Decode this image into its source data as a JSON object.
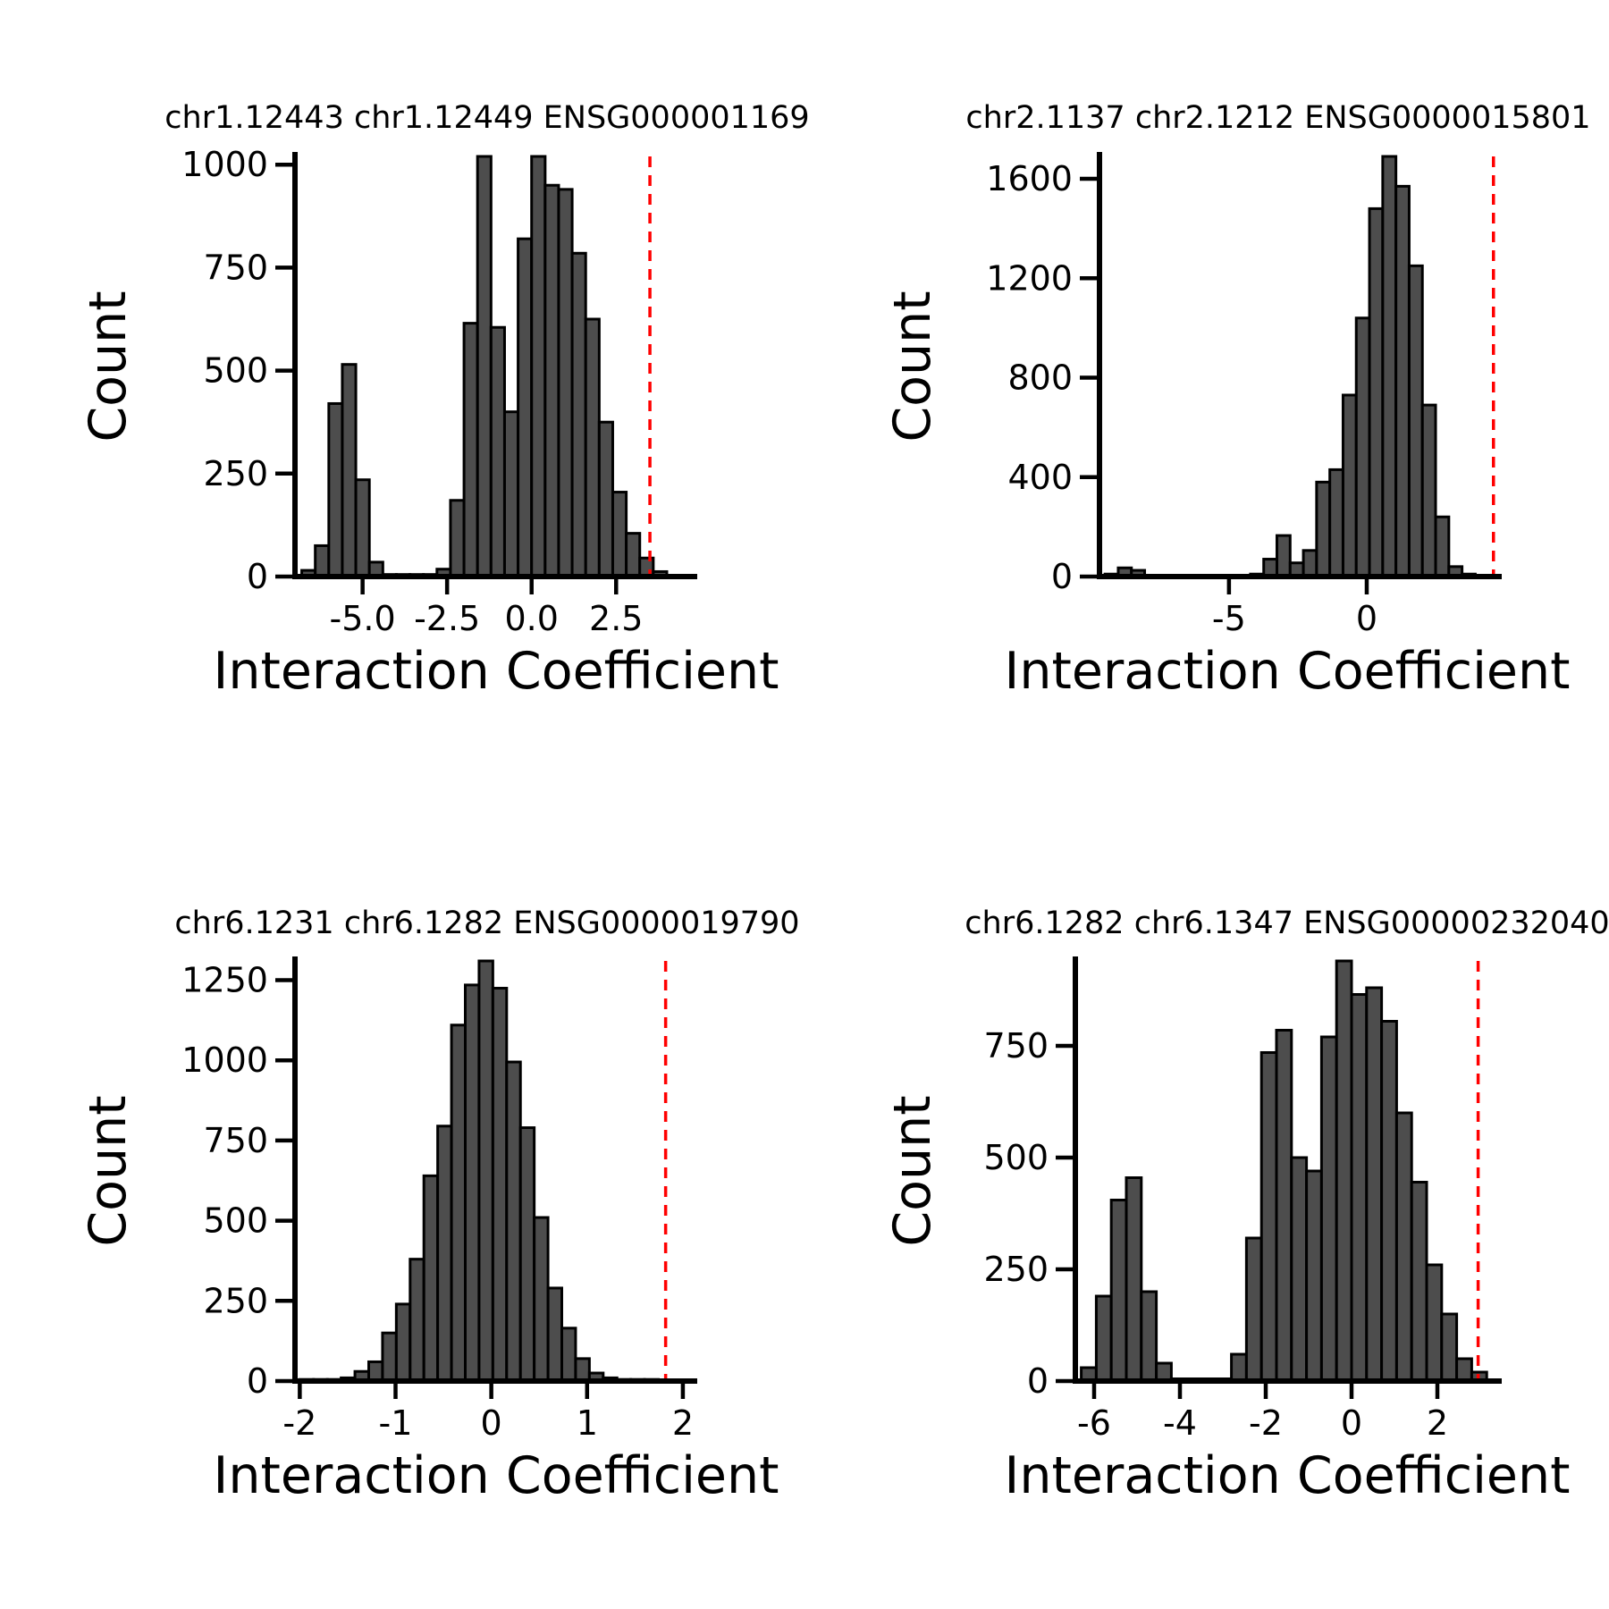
{
  "colors": {
    "bar_fill": "#4d4d4d",
    "bar_edge": "#000000",
    "threshold_line": "#ff0000"
  },
  "chart_data": [
    {
      "type": "bar",
      "title": "chr1.12443 chr1.12449 ENSG000001169",
      "xlabel": "Interaction Coefficient",
      "ylabel": "Count",
      "xlim": [
        -7.0,
        4.9
      ],
      "ylim": [
        0,
        1020
      ],
      "xticks": [
        -5.0,
        -2.5,
        0.0,
        2.5
      ],
      "xtick_labels": [
        "-5.0",
        "-2.5",
        "0.0",
        "2.5"
      ],
      "yticks": [
        0,
        250,
        500,
        750,
        1000
      ],
      "ytick_labels": [
        "0",
        "250",
        "500",
        "750",
        "1000"
      ],
      "bin_start": -6.8,
      "bin_width": 0.4,
      "counts": [
        15,
        75,
        420,
        515,
        235,
        35,
        5,
        5,
        5,
        5,
        18,
        185,
        615,
        1020,
        605,
        400,
        820,
        1020,
        950,
        940,
        785,
        625,
        375,
        205,
        105,
        45,
        12
      ],
      "threshold": 3.5,
      "grid": false
    },
    {
      "type": "bar",
      "title": "chr2.1137 chr2.1212 ENSG0000015801",
      "xlabel": "Interaction Coefficient",
      "ylabel": "Count",
      "xlim": [
        -9.7,
        4.9
      ],
      "ylim": [
        0,
        1690
      ],
      "xticks": [
        -5,
        0
      ],
      "xtick_labels": [
        "-5",
        "0"
      ],
      "yticks": [
        0,
        400,
        800,
        1200,
        1600
      ],
      "ytick_labels": [
        "0",
        "400",
        "800",
        "1200",
        "1600"
      ],
      "bin_start": -9.5,
      "bin_width": 0.48,
      "counts": [
        10,
        35,
        25,
        5,
        5,
        5,
        5,
        5,
        5,
        5,
        5,
        10,
        70,
        165,
        55,
        105,
        380,
        430,
        730,
        1040,
        1480,
        1690,
        1570,
        1250,
        690,
        240,
        40,
        10
      ],
      "threshold": 4.6,
      "grid": false
    },
    {
      "type": "bar",
      "title": "chr6.1231 chr6.1282 ENSG0000019790",
      "xlabel": "Interaction Coefficient",
      "ylabel": "Count",
      "xlim": [
        -2.05,
        2.15
      ],
      "ylim": [
        0,
        1310
      ],
      "xticks": [
        -2,
        -1,
        0,
        1,
        2
      ],
      "xtick_labels": [
        "-2",
        "-1",
        "0",
        "1",
        "2"
      ],
      "yticks": [
        0,
        250,
        500,
        750,
        1000,
        1250
      ],
      "ytick_labels": [
        "0",
        "250",
        "500",
        "750",
        "1000",
        "1250"
      ],
      "bin_start": -2.0,
      "bin_width": 0.144,
      "counts": [
        5,
        5,
        5,
        10,
        30,
        60,
        150,
        240,
        380,
        640,
        795,
        1110,
        1235,
        1310,
        1225,
        995,
        790,
        510,
        290,
        165,
        70,
        25,
        10,
        5,
        5,
        5
      ],
      "threshold": 1.82,
      "grid": false
    },
    {
      "type": "bar",
      "title": "chr6.1282 chr6.1347 ENSG00000232040",
      "xlabel": "Interaction Coefficient",
      "ylabel": "Count",
      "xlim": [
        -6.5,
        3.5
      ],
      "ylim": [
        0,
        940
      ],
      "xticks": [
        -6,
        -4,
        -2,
        0,
        2
      ],
      "xtick_labels": [
        "-6",
        "-4",
        "-2",
        "0",
        "2"
      ],
      "yticks": [
        0,
        250,
        500,
        750
      ],
      "ytick_labels": [
        "0",
        "250",
        "500",
        "750"
      ],
      "bin_start": -6.3,
      "bin_width": 0.35,
      "counts": [
        30,
        190,
        405,
        455,
        200,
        40,
        5,
        5,
        5,
        5,
        60,
        320,
        735,
        785,
        500,
        470,
        770,
        940,
        865,
        880,
        805,
        600,
        445,
        260,
        150,
        50,
        20
      ],
      "threshold": 2.95,
      "grid": false
    }
  ]
}
